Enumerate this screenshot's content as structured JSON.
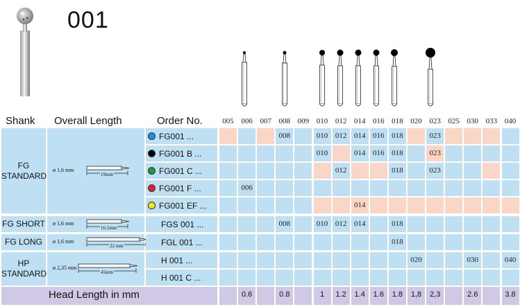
{
  "title": "001",
  "headers": {
    "shank": "Shank",
    "overall_length": "Overall Length",
    "order_no": "Order No."
  },
  "sizes": [
    "005",
    "006",
    "007",
    "008",
    "009",
    "010",
    "012",
    "014",
    "016",
    "018",
    "020",
    "023",
    "025",
    "030",
    "033",
    "040"
  ],
  "rows": [
    {
      "order": "FG001 ...",
      "dot": "#1f8fd6",
      "values": [
        "",
        "",
        "",
        "008",
        "",
        "010",
        "012",
        "014",
        "016",
        "018",
        "",
        "023",
        "",
        "",
        "",
        ""
      ]
    },
    {
      "order": "FG001 B ...",
      "dot": "#000000",
      "values": [
        "",
        "",
        "",
        "",
        "",
        "010",
        "",
        "014",
        "016",
        "018",
        "",
        "023",
        "",
        "",
        "",
        ""
      ]
    },
    {
      "order": "FG001 C ...",
      "dot": "#1a9a3a",
      "values": [
        "",
        "",
        "",
        "",
        "",
        "",
        "012",
        "",
        "",
        "018",
        "",
        "023",
        "",
        "",
        "",
        ""
      ]
    },
    {
      "order": "FG001 F ...",
      "dot": "#e0202a",
      "values": [
        "",
        "006",
        "",
        "",
        "",
        "",
        "",
        "",
        "",
        "",
        "",
        "",
        "",
        "",
        "",
        ""
      ]
    },
    {
      "order": "FG001 EF ...",
      "dot": "#f3e81a",
      "values": [
        "",
        "",
        "",
        "",
        "",
        "",
        "",
        "014",
        "",
        "",
        "",
        "",
        "",
        "",
        "",
        ""
      ]
    },
    {
      "order": "FGS 001 ...",
      "dot": "",
      "values": [
        "",
        "",
        "",
        "008",
        "",
        "010",
        "012",
        "014",
        "",
        "018",
        "",
        "",
        "",
        "",
        "",
        ""
      ]
    },
    {
      "order": "FGL 001 ...",
      "dot": "",
      "values": [
        "",
        "",
        "",
        "",
        "",
        "",
        "",
        "",
        "",
        "018",
        "",
        "",
        "",
        "",
        "",
        ""
      ]
    },
    {
      "order": "H 001 ...",
      "dot": "",
      "values": [
        "",
        "",
        "",
        "",
        "",
        "",
        "",
        "",
        "",
        "",
        "020",
        "",
        "",
        "030",
        "",
        "040"
      ]
    },
    {
      "order": "H 001 C ...",
      "dot": "",
      "values": [
        "",
        "",
        "",
        "",
        "",
        "",
        "",
        "",
        "",
        "",
        "",
        "",
        "",
        "",
        "",
        ""
      ]
    }
  ],
  "shanks": {
    "fg_standard": "FG\nSTANDARD",
    "fg_short": "FG SHORT",
    "fg_long": "FG LONG",
    "hp_standard": "HP\nSTANDARD"
  },
  "lengths": {
    "fg_standard": {
      "dia": "ø 1,6 mm",
      "len": "19mm"
    },
    "fg_short": {
      "dia": "ø 1,6 mm",
      "len": "16.5mm"
    },
    "fg_long": {
      "dia": "ø 1,6 mm",
      "len": "22 mm"
    },
    "hp_standard": {
      "dia": "ø 2,35 mm",
      "len": "45mm"
    }
  },
  "head_length": {
    "label": "Head Length in mm",
    "values": [
      "",
      "0.6",
      "",
      "0.8",
      "",
      "1",
      "1.2",
      "1.4",
      "1.6",
      "1.8",
      "1,8",
      "2,3",
      "",
      "2.6",
      "",
      "3.8"
    ]
  },
  "colors": {
    "blue": "#bfe0f2",
    "peach": "#f9d6c6",
    "lavender": "#cfc9e6"
  }
}
